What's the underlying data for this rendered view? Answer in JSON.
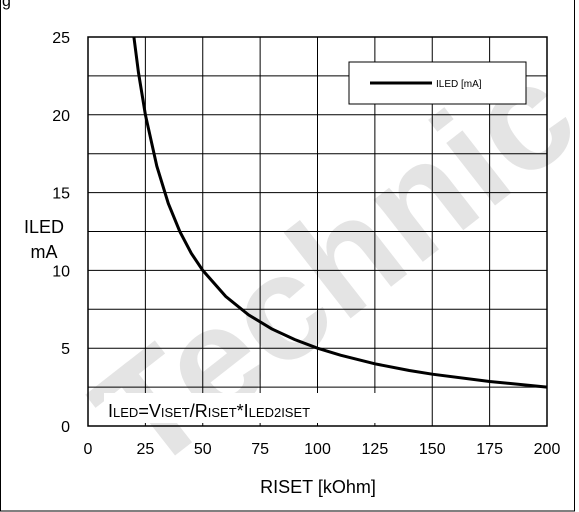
{
  "figure_caption_fragment": "g",
  "watermark_text": "Technic",
  "chart_data": {
    "type": "line",
    "xlabel": "RISET [kOhm]",
    "ylabel_lines": [
      "ILED",
      "mA"
    ],
    "xlim": [
      0,
      200
    ],
    "ylim": [
      0,
      25
    ],
    "xticks": [
      0,
      25,
      50,
      75,
      100,
      125,
      150,
      175,
      200
    ],
    "yticks": [
      0,
      5,
      10,
      15,
      20,
      25
    ],
    "grid": true,
    "legend_position": "top-right",
    "series": [
      {
        "name": "ILED [mA]",
        "color": "#000000",
        "x": [
          20,
          22,
          25,
          30,
          35,
          40,
          45,
          50,
          60,
          70,
          80,
          90,
          100,
          110,
          125,
          140,
          150,
          175,
          200
        ],
        "y": [
          25.0,
          22.7,
          20.0,
          16.7,
          14.3,
          12.5,
          11.1,
          10.0,
          8.33,
          7.14,
          6.25,
          5.56,
          5.0,
          4.55,
          4.0,
          3.57,
          3.33,
          2.86,
          2.5
        ]
      }
    ],
    "annotation": [
      {
        "text": "I",
        "size": "big"
      },
      {
        "text": "LED",
        "size": "small"
      },
      {
        "text": "=V",
        "size": "big"
      },
      {
        "text": "ISET",
        "size": "small"
      },
      {
        "text": "/R",
        "size": "big"
      },
      {
        "text": "ISET",
        "size": "small"
      },
      {
        "text": "*I",
        "size": "big"
      },
      {
        "text": "LED2ISET",
        "size": "small"
      }
    ]
  }
}
